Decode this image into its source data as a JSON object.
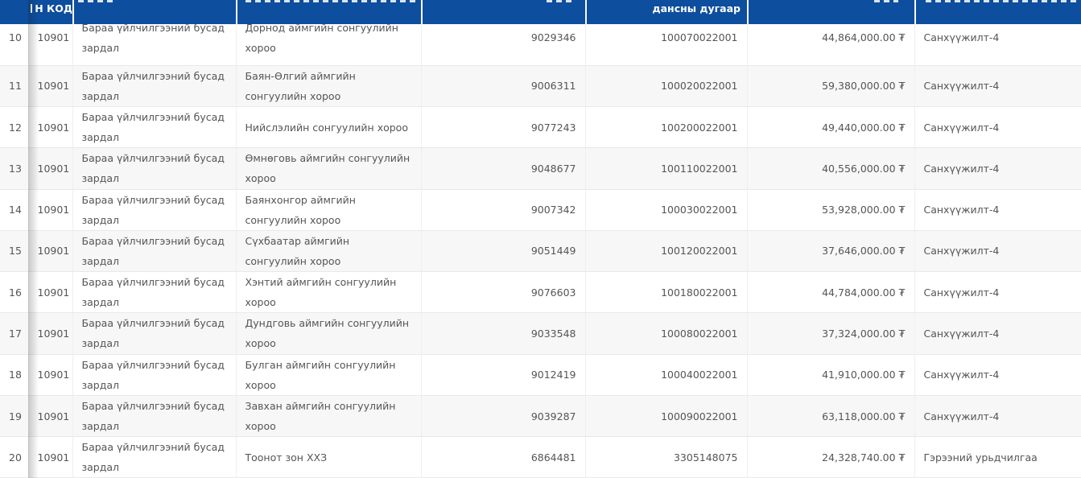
{
  "colors": {
    "header_bg": "#0d4e9e",
    "row_stripe": "#f7f7f7",
    "body_text": "#555555"
  },
  "currency_symbol": "₮",
  "table": {
    "header": {
      "rownum_label": "",
      "code_label": "Н КОД",
      "expense_label": "",
      "organization_label": "",
      "reference_label": "",
      "account_label": "дансны дугаар",
      "amount_label": "",
      "funding_label": ""
    },
    "rows": [
      {
        "num": "10",
        "code": "10901",
        "expense_item": "Бараа үйлчилгээний бусад зардал",
        "organization": "Дорнод аймгийн сонгуулийн хороо",
        "reference": "9029346",
        "account": "100070022001",
        "amount": "44,864,000.00 ₮",
        "funding": "Санхүүжилт-4"
      },
      {
        "num": "11",
        "code": "10901",
        "expense_item": "Бараа үйлчилгээний бусад зардал",
        "organization": "Баян-Өлгий аймгийн сонгуулийн хороо",
        "reference": "9006311",
        "account": "100020022001",
        "amount": "59,380,000.00 ₮",
        "funding": "Санхүүжилт-4"
      },
      {
        "num": "12",
        "code": "10901",
        "expense_item": "Бараа үйлчилгээний бусад зардал",
        "organization": "Нийслэлийн сонгуулийн хороо",
        "reference": "9077243",
        "account": "100200022001",
        "amount": "49,440,000.00 ₮",
        "funding": "Санхүүжилт-4"
      },
      {
        "num": "13",
        "code": "10901",
        "expense_item": "Бараа үйлчилгээний бусад зардал",
        "organization": "Өмнөговь аймгийн сонгуулийн хороо",
        "reference": "9048677",
        "account": "100110022001",
        "amount": "40,556,000.00 ₮",
        "funding": "Санхүүжилт-4"
      },
      {
        "num": "14",
        "code": "10901",
        "expense_item": "Бараа үйлчилгээний бусад зардал",
        "organization": "Баянхонгор аймгийн сонгуулийн хороо",
        "reference": "9007342",
        "account": "100030022001",
        "amount": "53,928,000.00 ₮",
        "funding": "Санхүүжилт-4"
      },
      {
        "num": "15",
        "code": "10901",
        "expense_item": "Бараа үйлчилгээний бусад зардал",
        "organization": "Сүхбаатар аймгийн сонгуулийн хороо",
        "reference": "9051449",
        "account": "100120022001",
        "amount": "37,646,000.00 ₮",
        "funding": "Санхүүжилт-4"
      },
      {
        "num": "16",
        "code": "10901",
        "expense_item": "Бараа үйлчилгээний бусад зардал",
        "organization": "Хэнтий аймгийн сонгуулийн хороо",
        "reference": "9076603",
        "account": "100180022001",
        "amount": "44,784,000.00 ₮",
        "funding": "Санхүүжилт-4"
      },
      {
        "num": "17",
        "code": "10901",
        "expense_item": "Бараа үйлчилгээний бусад зардал",
        "organization": "Дундговь аймгийн сонгуулийн хороо",
        "reference": "9033548",
        "account": "100080022001",
        "amount": "37,324,000.00 ₮",
        "funding": "Санхүүжилт-4"
      },
      {
        "num": "18",
        "code": "10901",
        "expense_item": "Бараа үйлчилгээний бусад зардал",
        "organization": "Булган аймгийн сонгуулийн хороо",
        "reference": "9012419",
        "account": "100040022001",
        "amount": "41,910,000.00 ₮",
        "funding": "Санхүүжилт-4"
      },
      {
        "num": "19",
        "code": "10901",
        "expense_item": "Бараа үйлчилгээний бусад зардал",
        "organization": "Завхан аймгийн сонгуулийн хороо",
        "reference": "9039287",
        "account": "100090022001",
        "amount": "63,118,000.00 ₮",
        "funding": "Санхүүжилт-4"
      },
      {
        "num": "20",
        "code": "10901",
        "expense_item": "Бараа үйлчилгээний бусад зардал",
        "organization": "Тоонот зон ХХЗ",
        "reference": "6864481",
        "account": "3305148075",
        "amount": "24,328,740.00 ₮",
        "funding": "Гэрээний урьдчилгаа"
      }
    ]
  }
}
